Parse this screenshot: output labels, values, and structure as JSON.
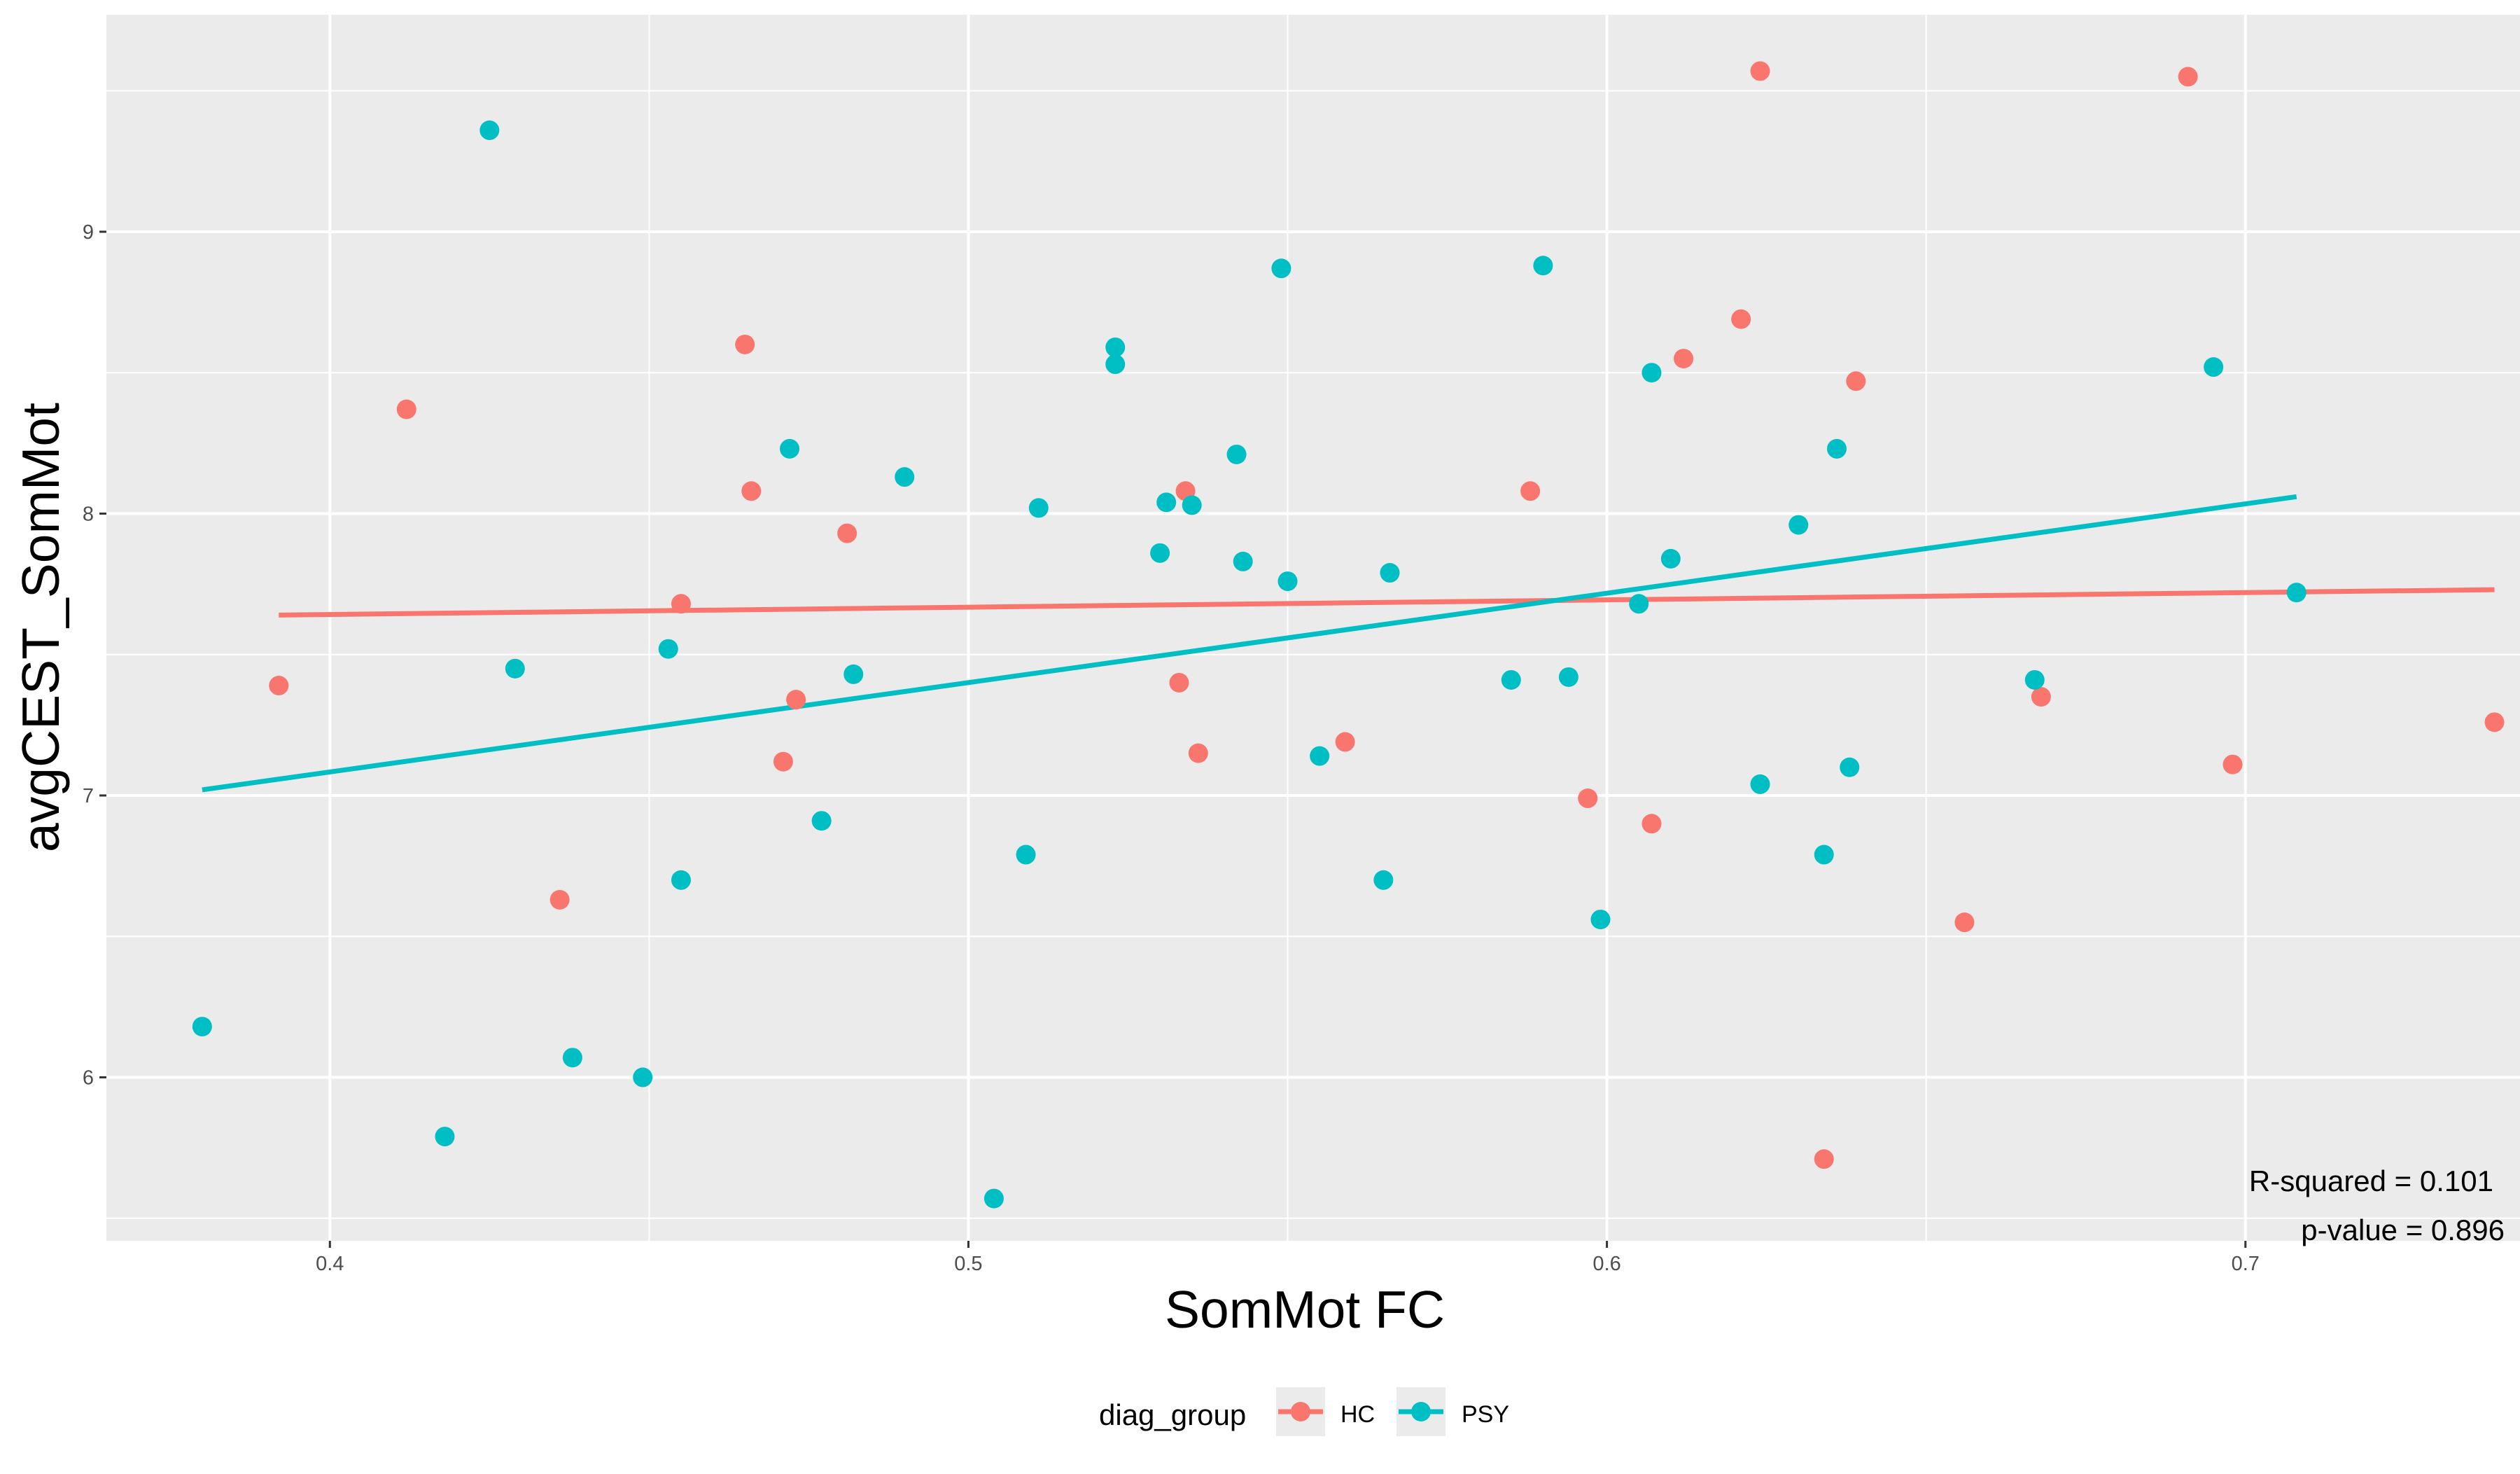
{
  "chart_data": {
    "type": "scatter",
    "xlabel": "SomMot FC",
    "ylabel": "avgCEST_SomMot",
    "xlim": [
      0.365,
      0.743
    ],
    "ylim": [
      5.42,
      9.77
    ],
    "x_ticks": [
      "0.4",
      "0.5",
      "0.6",
      "0.7"
    ],
    "y_ticks": [
      "6",
      "7",
      "8",
      "9"
    ],
    "grid": true,
    "legend": {
      "title": "diag_group",
      "position": "bottom",
      "entries": [
        "HC",
        "PSY"
      ]
    },
    "colors": {
      "HC": "#F8766D",
      "PSY": "#00BFC4"
    },
    "annotations": [
      "R-squared = 0.101",
      "p-value = 0.896"
    ],
    "series": [
      {
        "name": "HC",
        "points": [
          [
            0.392,
            7.39
          ],
          [
            0.412,
            8.37
          ],
          [
            0.436,
            6.63
          ],
          [
            0.455,
            7.68
          ],
          [
            0.465,
            8.6
          ],
          [
            0.466,
            8.08
          ],
          [
            0.471,
            7.12
          ],
          [
            0.473,
            7.34
          ],
          [
            0.481,
            7.93
          ],
          [
            0.533,
            7.4
          ],
          [
            0.534,
            8.08
          ],
          [
            0.536,
            7.15
          ],
          [
            0.559,
            7.19
          ],
          [
            0.588,
            8.08
          ],
          [
            0.597,
            6.99
          ],
          [
            0.607,
            6.9
          ],
          [
            0.612,
            8.55
          ],
          [
            0.621,
            8.69
          ],
          [
            0.624,
            9.57
          ],
          [
            0.634,
            5.71
          ],
          [
            0.639,
            8.47
          ],
          [
            0.656,
            6.55
          ],
          [
            0.668,
            7.35
          ],
          [
            0.691,
            9.55
          ],
          [
            0.698,
            7.11
          ],
          [
            0.739,
            7.26
          ]
        ],
        "fit": [
          [
            0.392,
            7.64
          ],
          [
            0.739,
            7.73
          ]
        ]
      },
      {
        "name": "PSY",
        "points": [
          [
            0.38,
            6.18
          ],
          [
            0.418,
            5.79
          ],
          [
            0.425,
            9.36
          ],
          [
            0.429,
            7.45
          ],
          [
            0.438,
            6.07
          ],
          [
            0.449,
            6.0
          ],
          [
            0.453,
            7.52
          ],
          [
            0.455,
            6.7
          ],
          [
            0.472,
            8.23
          ],
          [
            0.477,
            6.91
          ],
          [
            0.482,
            7.43
          ],
          [
            0.49,
            8.13
          ],
          [
            0.504,
            5.57
          ],
          [
            0.509,
            6.79
          ],
          [
            0.511,
            8.02
          ],
          [
            0.523,
            8.59
          ],
          [
            0.523,
            8.53
          ],
          [
            0.53,
            7.86
          ],
          [
            0.531,
            8.04
          ],
          [
            0.535,
            8.03
          ],
          [
            0.542,
            8.21
          ],
          [
            0.543,
            7.83
          ],
          [
            0.549,
            8.87
          ],
          [
            0.55,
            7.76
          ],
          [
            0.555,
            7.14
          ],
          [
            0.565,
            6.7
          ],
          [
            0.566,
            7.79
          ],
          [
            0.585,
            7.41
          ],
          [
            0.59,
            8.88
          ],
          [
            0.594,
            7.42
          ],
          [
            0.599,
            6.56
          ],
          [
            0.605,
            7.68
          ],
          [
            0.607,
            8.5
          ],
          [
            0.61,
            7.84
          ],
          [
            0.624,
            7.04
          ],
          [
            0.63,
            7.96
          ],
          [
            0.634,
            6.79
          ],
          [
            0.636,
            8.23
          ],
          [
            0.638,
            7.1
          ],
          [
            0.667,
            7.41
          ],
          [
            0.695,
            8.52
          ],
          [
            0.708,
            7.72
          ]
        ],
        "fit": [
          [
            0.38,
            7.02
          ],
          [
            0.708,
            8.06
          ]
        ]
      }
    ]
  }
}
